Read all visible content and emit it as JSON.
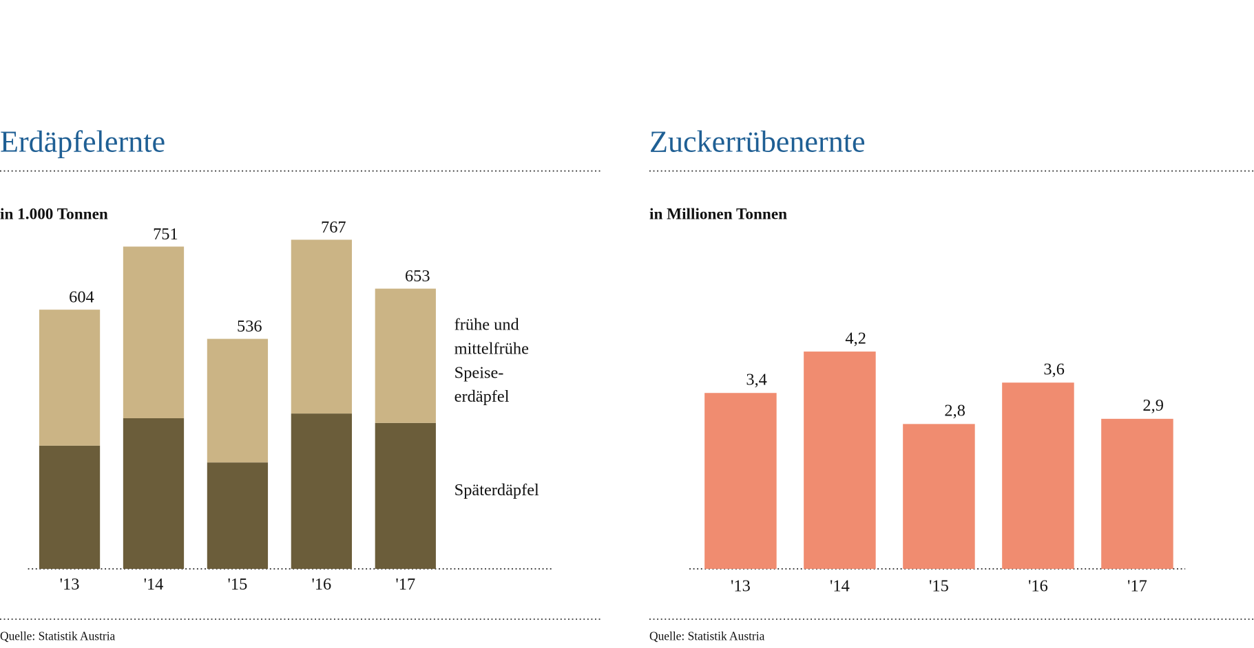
{
  "chart_data": [
    {
      "type": "stacked-bar",
      "title": "Erdäpfelernte",
      "subtitle": "in 1.000 Tonnen",
      "source": "Quelle: Statistik Austria",
      "categories": [
        "'13",
        "'14",
        "'15",
        "'16",
        "'17"
      ],
      "series": [
        {
          "name": [
            "Späterdäpfel"
          ],
          "color": "#6b5d3a",
          "values": [
            287,
            351,
            248,
            362,
            340
          ]
        },
        {
          "name": [
            "frühe und",
            "mittelfrühe",
            "Speise-",
            "erdäpfel"
          ],
          "color": "#cbb485",
          "values": [
            317,
            400,
            288,
            405,
            313
          ]
        }
      ],
      "totals": [
        604,
        751,
        536,
        767,
        653
      ]
    },
    {
      "type": "bar",
      "title": "Zuckerrübenernte",
      "subtitle": "in Millionen Tonnen",
      "source": "Quelle: Statistik Austria",
      "categories": [
        "'13",
        "'14",
        "'15",
        "'16",
        "'17"
      ],
      "values": [
        3.4,
        4.2,
        2.8,
        3.6,
        2.9
      ],
      "value_labels": [
        "3,4",
        "4,2",
        "2,8",
        "3,6",
        "2,9"
      ],
      "color": "#f08c70"
    }
  ]
}
